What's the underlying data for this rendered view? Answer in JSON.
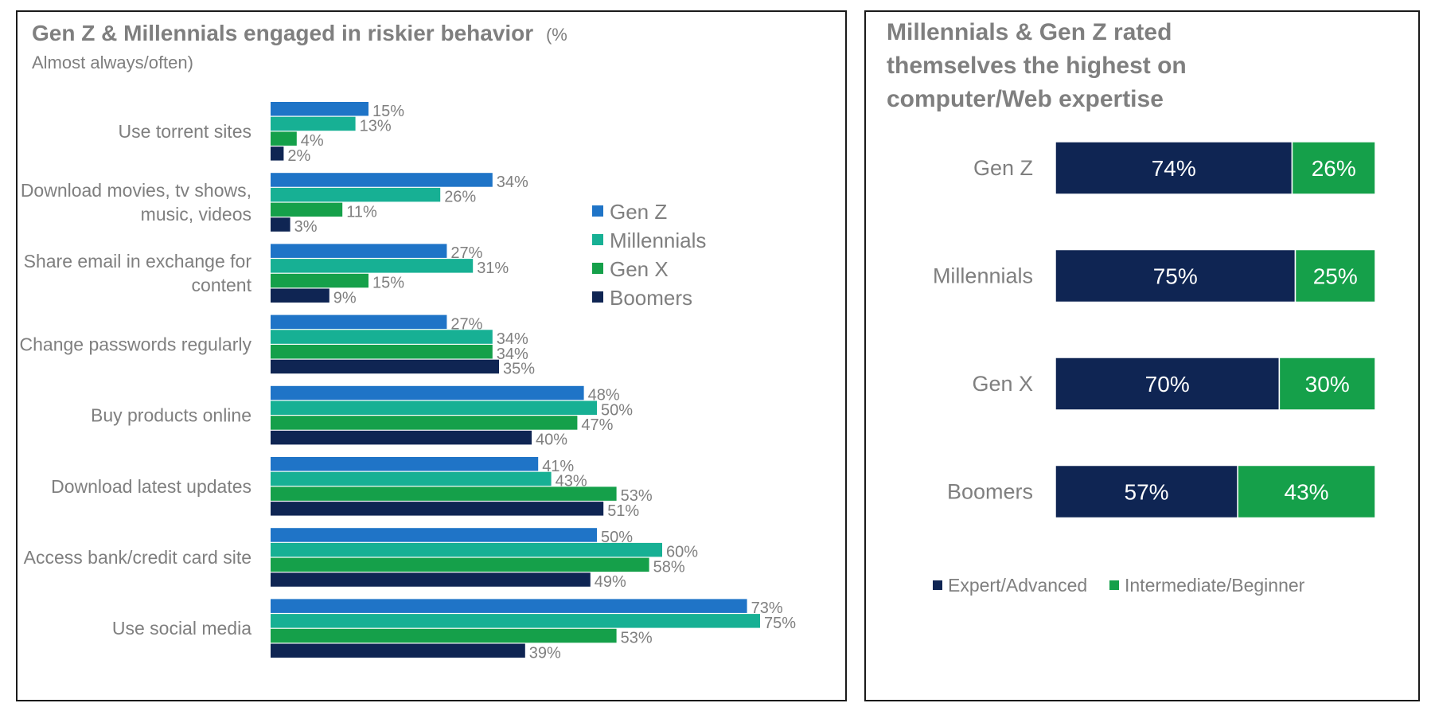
{
  "chart_data": [
    {
      "type": "bar",
      "orientation": "horizontal",
      "title": "Gen Z & Millennials engaged in riskier behavior",
      "subtitle_inline": "(%",
      "subtitle_line2": "Almost always/often)",
      "categories": [
        [
          "Use torrent sites"
        ],
        [
          "Download movies, tv shows,",
          "music, videos"
        ],
        [
          "Share email in exchange for",
          "content"
        ],
        [
          "Change passwords regularly"
        ],
        [
          "Buy products online"
        ],
        [
          "Download latest updates"
        ],
        [
          "Access bank/credit card site"
        ],
        [
          "Use social media"
        ]
      ],
      "series": [
        {
          "name": "Gen Z",
          "color": "#1f74c7",
          "values": [
            15,
            34,
            27,
            27,
            48,
            41,
            50,
            73
          ]
        },
        {
          "name": "Millennials",
          "color": "#17b094",
          "values": [
            13,
            26,
            31,
            34,
            50,
            43,
            60,
            75
          ]
        },
        {
          "name": "Gen X",
          "color": "#15a04a",
          "values": [
            4,
            11,
            15,
            34,
            47,
            53,
            58,
            53
          ]
        },
        {
          "name": "Boomers",
          "color": "#0f2553",
          "values": [
            2,
            3,
            9,
            35,
            40,
            51,
            49,
            39
          ]
        }
      ],
      "value_suffix": "%",
      "legend_position": "right",
      "xlim": [
        0,
        75
      ]
    },
    {
      "type": "bar",
      "orientation": "horizontal",
      "stacked": true,
      "title_lines": [
        "Millennials & Gen Z rated",
        "themselves the highest on",
        "computer/Web expertise"
      ],
      "categories": [
        "Gen Z",
        "Millennials",
        "Gen X",
        "Boomers"
      ],
      "series": [
        {
          "name": "Expert/Advanced",
          "color": "#0f2553",
          "values": [
            74,
            75,
            70,
            57
          ]
        },
        {
          "name": "Intermediate/Beginner",
          "color": "#15a04a",
          "values": [
            26,
            25,
            30,
            43
          ]
        }
      ],
      "value_suffix": "%",
      "legend_position": "bottom",
      "xlim": [
        0,
        100
      ]
    }
  ]
}
